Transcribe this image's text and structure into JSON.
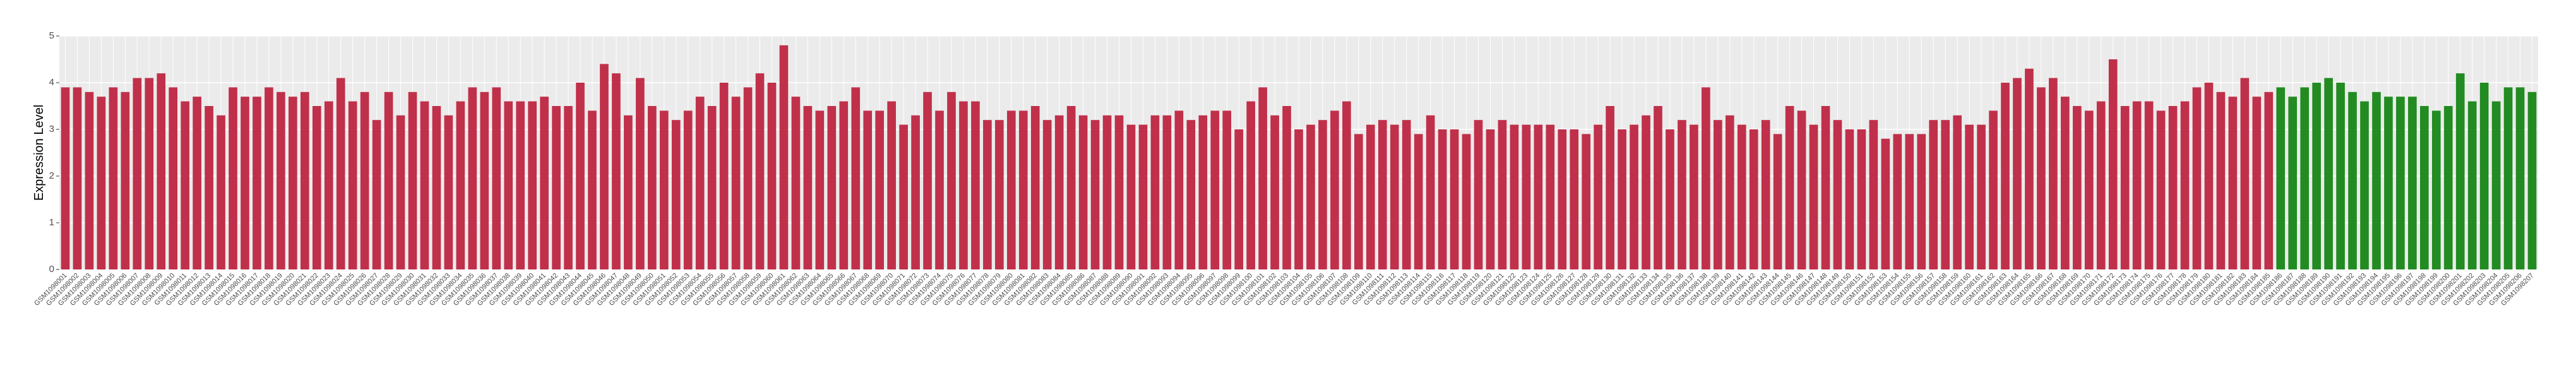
{
  "chart_data": {
    "type": "bar",
    "y_label": "Expression Level",
    "ylim": [
      0,
      5
    ],
    "yticks": [
      0,
      1,
      2,
      3,
      4,
      5
    ],
    "grid": true,
    "categories": [
      "GSM1098001",
      "GSM1098002",
      "GSM1098003",
      "GSM1098004",
      "GSM1098005",
      "GSM1098006",
      "GSM1098007",
      "GSM1098008",
      "GSM1098009",
      "GSM1098010",
      "GSM1098011",
      "GSM1098012",
      "GSM1098013",
      "GSM1098014",
      "GSM1098015",
      "GSM1098016",
      "GSM1098017",
      "GSM1098018",
      "GSM1098019",
      "GSM1098020",
      "GSM1098021",
      "GSM1098022",
      "GSM1098023",
      "GSM1098024",
      "GSM1098025",
      "GSM1098026",
      "GSM1098027",
      "GSM1098028",
      "GSM1098029",
      "GSM1098030",
      "GSM1098031",
      "GSM1098032",
      "GSM1098033",
      "GSM1098034",
      "GSM1098035",
      "GSM1098036",
      "GSM1098037",
      "GSM1098038",
      "GSM1098039",
      "GSM1098040",
      "GSM1098041",
      "GSM1098042",
      "GSM1098043",
      "GSM1098044",
      "GSM1098045",
      "GSM1098046",
      "GSM1098047",
      "GSM1098048",
      "GSM1098049",
      "GSM1098050",
      "GSM1098051",
      "GSM1098052",
      "GSM1098053",
      "GSM1098054",
      "GSM1098055",
      "GSM1098056",
      "GSM1098057",
      "GSM1098058",
      "GSM1098059",
      "GSM1098060",
      "GSM1098061",
      "GSM1098062",
      "GSM1098063",
      "GSM1098064",
      "GSM1098065",
      "GSM1098066",
      "GSM1098067",
      "GSM1098068",
      "GSM1098069",
      "GSM1098070",
      "GSM1098071",
      "GSM1098072",
      "GSM1098073",
      "GSM1098074",
      "GSM1098075",
      "GSM1098076",
      "GSM1098077",
      "GSM1098078",
      "GSM1098079",
      "GSM1098080",
      "GSM1098081",
      "GSM1098082",
      "GSM1098083",
      "GSM1098084",
      "GSM1098085",
      "GSM1098086",
      "GSM1098087",
      "GSM1098088",
      "GSM1098089",
      "GSM1098090",
      "GSM1098091",
      "GSM1098092",
      "GSM1098093",
      "GSM1098094",
      "GSM1098095",
      "GSM1098096",
      "GSM1098097",
      "GSM1098098",
      "GSM1098099",
      "GSM1098100",
      "GSM1098101",
      "GSM1098102",
      "GSM1098103",
      "GSM1098104",
      "GSM1098105",
      "GSM1098106",
      "GSM1098107",
      "GSM1098108",
      "GSM1098109",
      "GSM1098110",
      "GSM1098111",
      "GSM1098112",
      "GSM1098113",
      "GSM1098114",
      "GSM1098115",
      "GSM1098116",
      "GSM1098117",
      "GSM1098118",
      "GSM1098119",
      "GSM1098120",
      "GSM1098121",
      "GSM1098122",
      "GSM1098123",
      "GSM1098124",
      "GSM1098125",
      "GSM1098126",
      "GSM1098127",
      "GSM1098128",
      "GSM1098129",
      "GSM1098130",
      "GSM1098131",
      "GSM1098132",
      "GSM1098133",
      "GSM1098134",
      "GSM1098135",
      "GSM1098136",
      "GSM1098137",
      "GSM1098138",
      "GSM1098139",
      "GSM1098140",
      "GSM1098141",
      "GSM1098142",
      "GSM1098143",
      "GSM1098144",
      "GSM1098145",
      "GSM1098146",
      "GSM1098147",
      "GSM1098148",
      "GSM1098149",
      "GSM1098150",
      "GSM1098151",
      "GSM1098152",
      "GSM1098153",
      "GSM1098154",
      "GSM1098155",
      "GSM1098156",
      "GSM1098157",
      "GSM1098158",
      "GSM1098159",
      "GSM1098160",
      "GSM1098161",
      "GSM1098162",
      "GSM1098163",
      "GSM1098164",
      "GSM1098165",
      "GSM1098166",
      "GSM1098167",
      "GSM1098168",
      "GSM1098169",
      "GSM1098170",
      "GSM1098171",
      "GSM1098172",
      "GSM1098173",
      "GSM1098174",
      "GSM1098175",
      "GSM1098176",
      "GSM1098177",
      "GSM1098178",
      "GSM1098179",
      "GSM1098180",
      "GSM1098181",
      "GSM1098182",
      "GSM1098183",
      "GSM1098184",
      "GSM1098185",
      "GSM1098186",
      "GSM1098187",
      "GSM1098188",
      "GSM1098189",
      "GSM1098190",
      "GSM1098191",
      "GSM1098192",
      "GSM1098193",
      "GSM1098194",
      "GSM1098195",
      "GSM1098196",
      "GSM1098197",
      "GSM1098198",
      "GSM1098199",
      "GSM1098200",
      "GSM1098201",
      "GSM1098202",
      "GSM1098203",
      "GSM1098204",
      "GSM1098205",
      "GSM1098206",
      "GSM1098207"
    ],
    "values": [
      3.9,
      3.9,
      3.8,
      3.7,
      3.9,
      3.8,
      4.1,
      4.1,
      4.2,
      3.9,
      3.6,
      3.7,
      3.5,
      3.3,
      3.9,
      3.7,
      3.7,
      3.9,
      3.8,
      3.7,
      3.8,
      3.5,
      3.6,
      4.1,
      3.6,
      3.8,
      3.2,
      3.8,
      3.3,
      3.8,
      3.6,
      3.5,
      3.3,
      3.6,
      3.9,
      3.8,
      3.9,
      3.6,
      3.6,
      3.6,
      3.7,
      3.5,
      3.5,
      4.0,
      3.4,
      4.4,
      4.2,
      3.3,
      4.1,
      3.5,
      3.4,
      3.2,
      3.4,
      3.7,
      3.5,
      4.0,
      3.7,
      3.9,
      4.2,
      4.0,
      4.8,
      3.7,
      3.5,
      3.4,
      3.5,
      3.6,
      3.9,
      3.4,
      3.4,
      3.6,
      3.1,
      3.3,
      3.8,
      3.4,
      3.8,
      3.6,
      3.6,
      3.2,
      3.2,
      3.4,
      3.4,
      3.5,
      3.2,
      3.3,
      3.5,
      3.3,
      3.2,
      3.3,
      3.3,
      3.1,
      3.1,
      3.3,
      3.3,
      3.4,
      3.2,
      3.3,
      3.4,
      3.4,
      3.0,
      3.6,
      3.9,
      3.3,
      3.5,
      3.0,
      3.1,
      3.2,
      3.4,
      3.6,
      2.9,
      3.1,
      3.2,
      3.1,
      3.2,
      2.9,
      3.3,
      3.0,
      3.0,
      2.9,
      3.2,
      3.0,
      3.2,
      3.1,
      3.1,
      3.1,
      3.1,
      3.0,
      3.0,
      2.9,
      3.1,
      3.5,
      3.0,
      3.1,
      3.3,
      3.5,
      3.0,
      3.2,
      3.1,
      3.9,
      3.2,
      3.3,
      3.1,
      3.0,
      3.2,
      2.9,
      3.5,
      3.4,
      3.1,
      3.5,
      3.2,
      3.0,
      3.0,
      3.2,
      2.8,
      2.9,
      2.9,
      2.9,
      3.2,
      3.2,
      3.3,
      3.1,
      3.1,
      3.4,
      4.0,
      4.1,
      4.3,
      3.9,
      4.1,
      3.7,
      3.5,
      3.4,
      3.6,
      4.5,
      3.5,
      3.6,
      3.6,
      3.4,
      3.5,
      3.6,
      3.9,
      4.0,
      3.8,
      3.7,
      4.1,
      3.7,
      3.8,
      3.9,
      3.7,
      3.9,
      4.0,
      4.1,
      4.0,
      3.8,
      3.6,
      3.8,
      3.7,
      3.7,
      3.7,
      3.5,
      3.4,
      3.5,
      4.2,
      3.6,
      4.0,
      3.6,
      3.9,
      3.9,
      3.8
    ],
    "colors": [
      "#c0304a",
      "#c0304a",
      "#c0304a",
      "#c0304a",
      "#c0304a",
      "#c0304a",
      "#c0304a",
      "#c0304a",
      "#c0304a",
      "#c0304a",
      "#c0304a",
      "#c0304a",
      "#c0304a",
      "#c0304a",
      "#c0304a",
      "#c0304a",
      "#c0304a",
      "#c0304a",
      "#c0304a",
      "#c0304a",
      "#c0304a",
      "#c0304a",
      "#c0304a",
      "#c0304a",
      "#c0304a",
      "#c0304a",
      "#c0304a",
      "#c0304a",
      "#c0304a",
      "#c0304a",
      "#c0304a",
      "#c0304a",
      "#c0304a",
      "#c0304a",
      "#c0304a",
      "#c0304a",
      "#c0304a",
      "#c0304a",
      "#c0304a",
      "#c0304a",
      "#c0304a",
      "#c0304a",
      "#c0304a",
      "#c0304a",
      "#c0304a",
      "#c0304a",
      "#c0304a",
      "#c0304a",
      "#c0304a",
      "#c0304a",
      "#c0304a",
      "#c0304a",
      "#c0304a",
      "#c0304a",
      "#c0304a",
      "#c0304a",
      "#c0304a",
      "#c0304a",
      "#c0304a",
      "#c0304a",
      "#c0304a",
      "#c0304a",
      "#c0304a",
      "#c0304a",
      "#c0304a",
      "#c0304a",
      "#c0304a",
      "#c0304a",
      "#c0304a",
      "#c0304a",
      "#c0304a",
      "#c0304a",
      "#c0304a",
      "#c0304a",
      "#c0304a",
      "#c0304a",
      "#c0304a",
      "#c0304a",
      "#c0304a",
      "#c0304a",
      "#c0304a",
      "#c0304a",
      "#c0304a",
      "#c0304a",
      "#c0304a",
      "#c0304a",
      "#c0304a",
      "#c0304a",
      "#c0304a",
      "#c0304a",
      "#c0304a",
      "#c0304a",
      "#c0304a",
      "#c0304a",
      "#c0304a",
      "#c0304a",
      "#c0304a",
      "#c0304a",
      "#c0304a",
      "#c0304a",
      "#c0304a",
      "#c0304a",
      "#c0304a",
      "#c0304a",
      "#c0304a",
      "#c0304a",
      "#c0304a",
      "#c0304a",
      "#c0304a",
      "#c0304a",
      "#c0304a",
      "#c0304a",
      "#c0304a",
      "#c0304a",
      "#c0304a",
      "#c0304a",
      "#c0304a",
      "#c0304a",
      "#c0304a",
      "#c0304a",
      "#c0304a",
      "#c0304a",
      "#c0304a",
      "#c0304a",
      "#c0304a",
      "#c0304a",
      "#c0304a",
      "#c0304a",
      "#c0304a",
      "#c0304a",
      "#c0304a",
      "#c0304a",
      "#c0304a",
      "#c0304a",
      "#c0304a",
      "#c0304a",
      "#c0304a",
      "#c0304a",
      "#c0304a",
      "#c0304a",
      "#c0304a",
      "#c0304a",
      "#c0304a",
      "#c0304a",
      "#c0304a",
      "#c0304a",
      "#c0304a",
      "#c0304a",
      "#c0304a",
      "#c0304a",
      "#c0304a",
      "#c0304a",
      "#c0304a",
      "#c0304a",
      "#c0304a",
      "#c0304a",
      "#c0304a",
      "#c0304a",
      "#c0304a",
      "#c0304a",
      "#c0304a",
      "#c0304a",
      "#c0304a",
      "#c0304a",
      "#c0304a",
      "#c0304a",
      "#c0304a",
      "#c0304a",
      "#c0304a",
      "#c0304a",
      "#c0304a",
      "#c0304a",
      "#c0304a",
      "#c0304a",
      "#c0304a",
      "#c0304a",
      "#c0304a",
      "#c0304a",
      "#c0304a",
      "#c0304a",
      "#c0304a",
      "#c0304a",
      "#c0304a",
      "#c0304a",
      "#c0304a",
      "#228b22",
      "#228b22",
      "#228b22",
      "#228b22",
      "#228b22",
      "#228b22",
      "#228b22",
      "#228b22",
      "#228b22",
      "#228b22",
      "#228b22",
      "#228b22",
      "#228b22",
      "#228b22",
      "#228b22",
      "#228b22",
      "#228b22",
      "#228b22",
      "#228b22",
      "#228b22",
      "#228b22",
      "#228b22"
    ]
  }
}
